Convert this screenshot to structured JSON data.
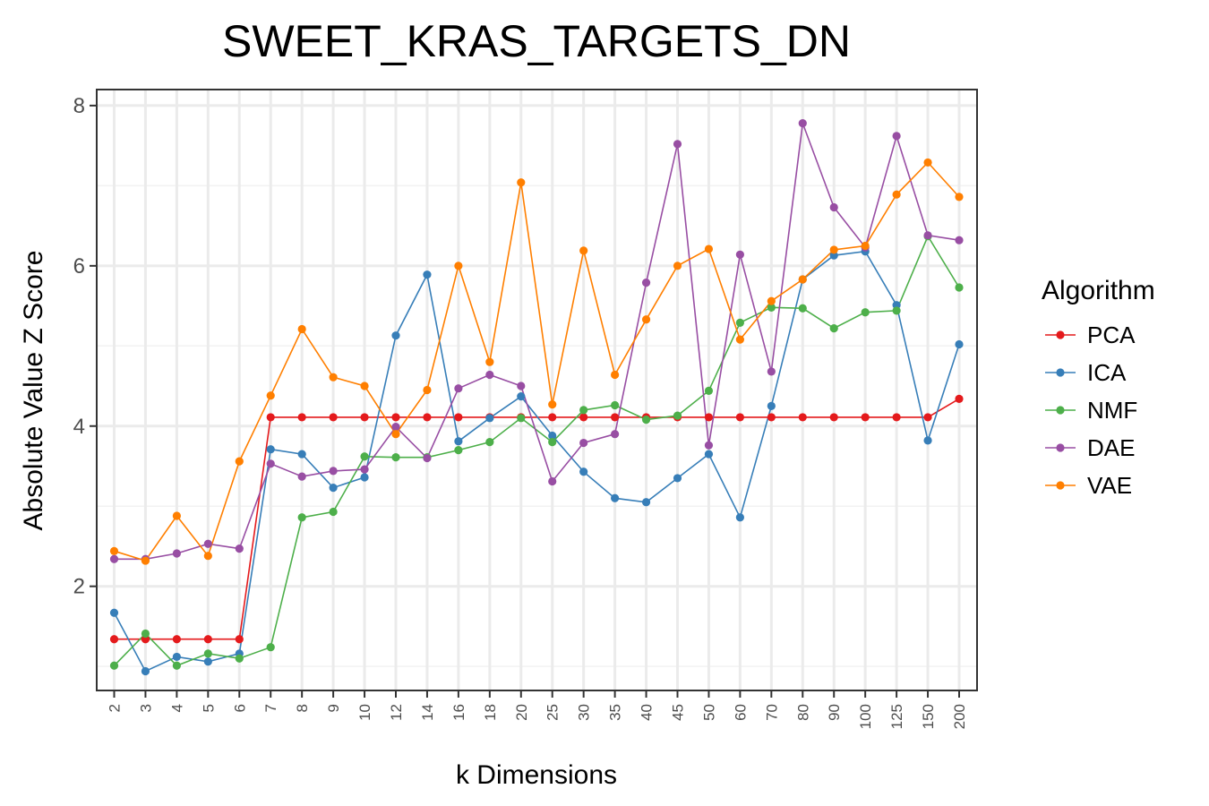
{
  "chart_data": {
    "type": "line",
    "title": "SWEET_KRAS_TARGETS_DN",
    "xlabel": "k Dimensions",
    "ylabel": "Absolute Value Z Score",
    "categories": [
      "2",
      "3",
      "4",
      "5",
      "6",
      "7",
      "8",
      "9",
      "10",
      "12",
      "14",
      "16",
      "18",
      "20",
      "25",
      "30",
      "35",
      "40",
      "45",
      "50",
      "60",
      "70",
      "80",
      "90",
      "100",
      "125",
      "150",
      "200"
    ],
    "ylim": [
      0.7,
      8.2
    ],
    "yticks": [
      2,
      4,
      6,
      8
    ],
    "grid": true,
    "legend": {
      "title": "Algorithm",
      "position": "right"
    },
    "series": [
      {
        "name": "PCA",
        "color": "#E41A1C",
        "values": [
          1.34,
          1.34,
          1.34,
          1.34,
          1.34,
          4.11,
          4.11,
          4.11,
          4.11,
          4.11,
          4.11,
          4.11,
          4.11,
          4.11,
          4.11,
          4.11,
          4.11,
          4.11,
          4.11,
          4.11,
          4.11,
          4.11,
          4.11,
          4.11,
          4.11,
          4.11,
          4.11,
          4.34
        ]
      },
      {
        "name": "ICA",
        "color": "#377EB8",
        "values": [
          1.67,
          0.94,
          1.12,
          1.06,
          1.16,
          3.71,
          3.65,
          3.23,
          3.36,
          5.13,
          5.89,
          3.81,
          4.1,
          4.37,
          3.88,
          3.43,
          3.1,
          3.05,
          3.35,
          3.65,
          2.86,
          4.25,
          5.83,
          6.13,
          6.18,
          5.51,
          3.82,
          5.02
        ]
      },
      {
        "name": "NMF",
        "color": "#4DAF4A",
        "values": [
          1.01,
          1.41,
          1.01,
          1.16,
          1.1,
          1.24,
          2.86,
          2.93,
          3.62,
          3.61,
          3.61,
          3.7,
          3.8,
          4.1,
          3.8,
          4.2,
          4.26,
          4.08,
          4.13,
          4.44,
          5.29,
          5.48,
          5.47,
          5.22,
          5.42,
          5.44,
          6.37,
          5.73
        ]
      },
      {
        "name": "DAE",
        "color": "#984EA3",
        "values": [
          2.34,
          2.34,
          2.41,
          2.53,
          2.47,
          3.53,
          3.37,
          3.44,
          3.46,
          3.99,
          3.6,
          4.47,
          4.64,
          4.5,
          3.31,
          3.79,
          3.9,
          5.79,
          7.52,
          3.76,
          6.14,
          4.68,
          7.78,
          6.73,
          6.23,
          7.62,
          6.38,
          6.32
        ]
      },
      {
        "name": "VAE",
        "color": "#FF7F00",
        "values": [
          2.44,
          2.32,
          2.88,
          2.38,
          3.56,
          4.38,
          5.21,
          4.61,
          4.5,
          3.9,
          4.45,
          6.0,
          4.8,
          7.04,
          4.27,
          6.19,
          4.64,
          5.33,
          6.0,
          6.21,
          5.08,
          5.56,
          5.83,
          6.2,
          6.25,
          6.89,
          7.29,
          6.86
        ]
      }
    ]
  }
}
